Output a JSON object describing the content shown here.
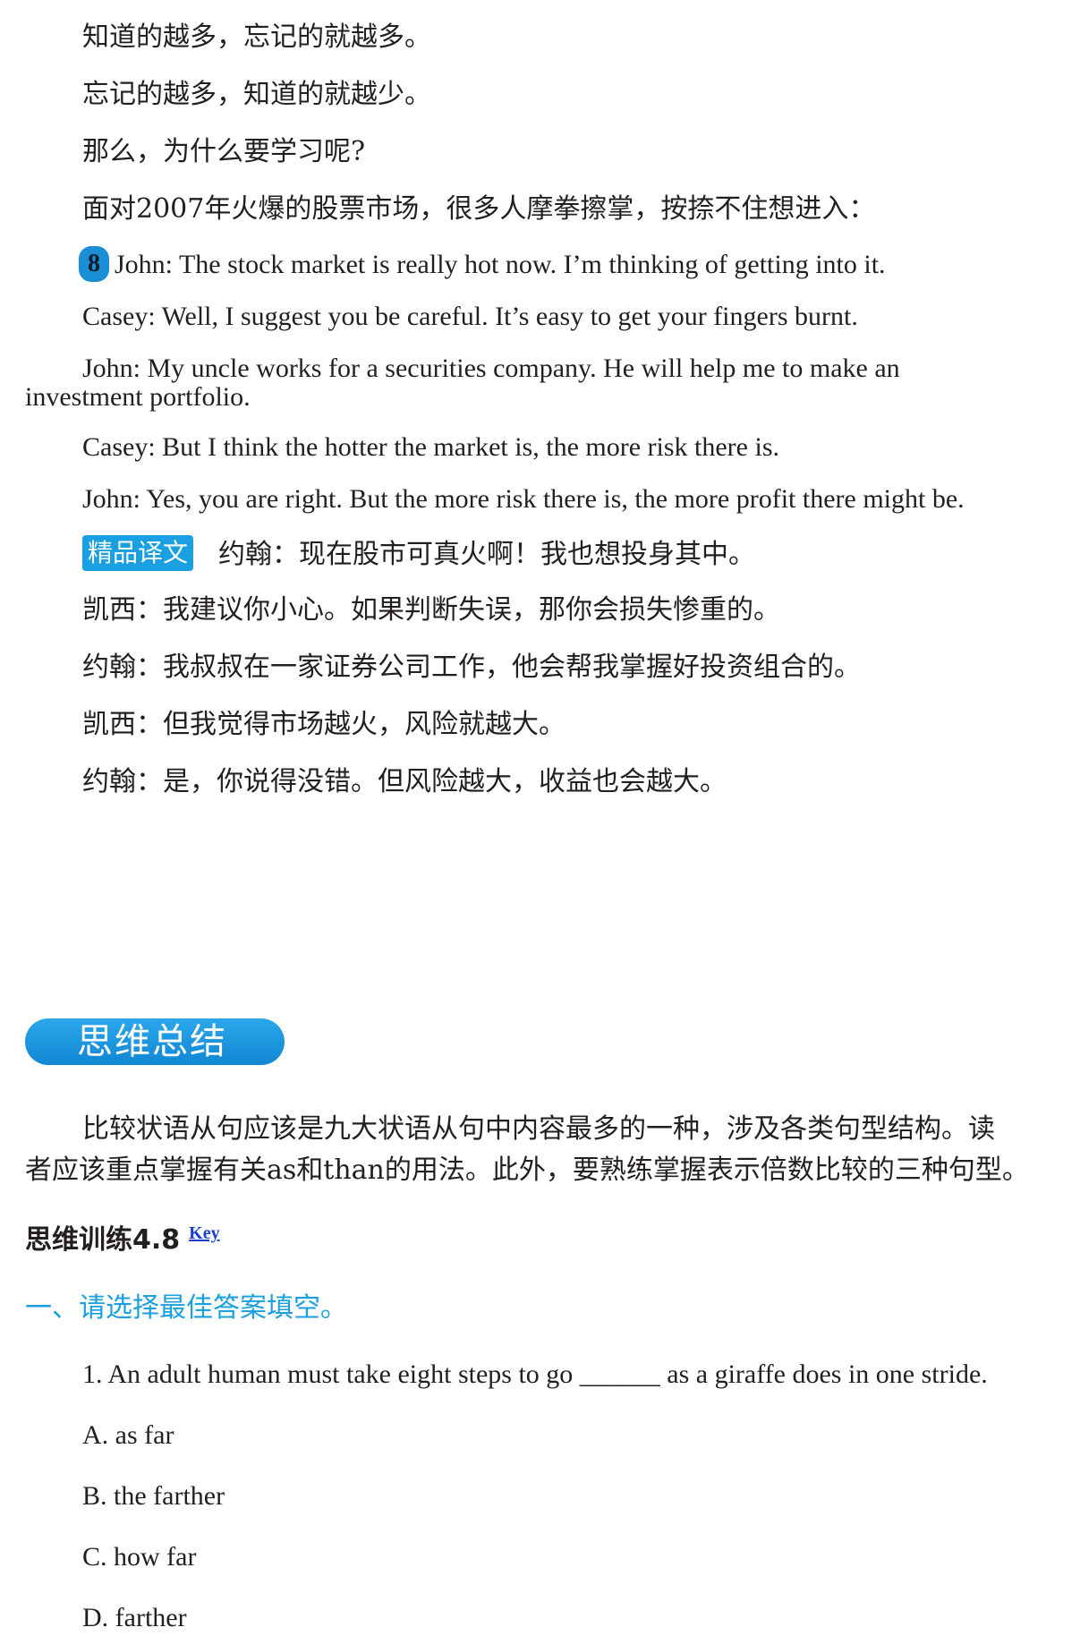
{
  "intro": {
    "line1": "知道的越多，忘记的就越多。",
    "line2": "忘记的越多，知道的就越少。",
    "line3": "那么，为什么要学习呢?",
    "line4": "面对2007年火爆的股票市场，很多人摩拳擦掌，按捺不住想进入："
  },
  "dialogue": {
    "number": "8",
    "john1": "John: The stock market is really hot now. I’m thinking of getting into it.",
    "casey1": "Casey: Well, I suggest you be careful. It’s easy to get your fingers burnt.",
    "john2_a": "John: My uncle works for a securities company. He will help me to make an",
    "john2_b": "investment portfolio.",
    "casey2": "Casey: But I think the hotter the market is, the more risk there is.",
    "john3": "John: Yes, you are right. But the more risk there is, the more profit there might be."
  },
  "translation": {
    "tag": "精品译文",
    "line1": "约翰：现在股市可真火啊！我也想投身其中。",
    "line2": "凯西：我建议你小心。如果判断失误，那你会损失惨重的。",
    "line3": "约翰：我叔叔在一家证券公司工作，他会帮我掌握好投资组合的。",
    "line4": "凯西：但我觉得市场越火，风险就越大。",
    "line5": "约翰：是，你说得没错。但风险越大，收益也会越大。"
  },
  "summary": {
    "banner": "思维总结",
    "para_a": "比较状语从句应该是九大状语从句中内容最多的一种，涉及各类句型结构。读",
    "para_b": "者应该重点掌握有关as和than的用法。此外，要熟练掌握表示倍数比较的三种句型。"
  },
  "exercise": {
    "heading": "思维训练4.8",
    "key_link": "Key",
    "sub_heading": "一、请选择最佳答案填空。",
    "question": "1. An adult human must take eight steps to go ______ as a giraffe does in one stride.",
    "options": [
      "A. as far",
      "B. the farther",
      "C. how far",
      "D. farther"
    ]
  },
  "colors": {
    "accent": "#1a9fe0",
    "link": "#1a3fd0",
    "text": "#231f20"
  }
}
